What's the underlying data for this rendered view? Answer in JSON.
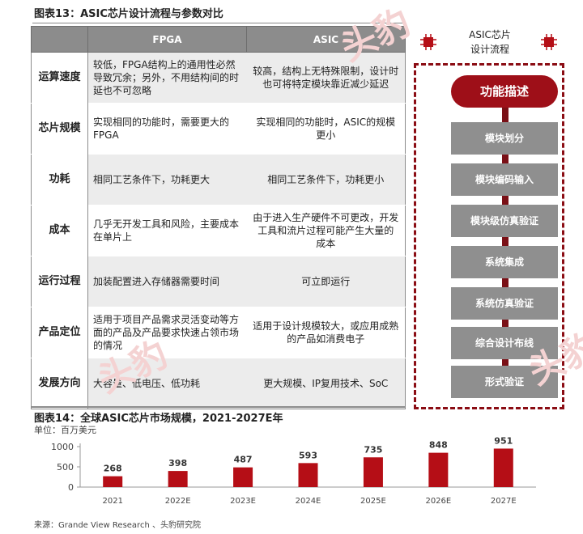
{
  "figure13": {
    "title": "图表13：ASIC芯片设计流程与参数对比",
    "columns": [
      "",
      "FPGA",
      "ASIC"
    ],
    "rows": [
      {
        "label": "运算速度",
        "fpga": "较低，FPGA结构上的通用性必然导致冗余；另外，不用结构间的时延也不可忽略",
        "asic": "较高，结构上无特殊限制，设计时也可将特定模块靠近减少延迟"
      },
      {
        "label": "芯片规模",
        "fpga": "实现相同的功能时，需要更大的FPGA",
        "asic": "实现相同的功能时，ASIC的规模更小"
      },
      {
        "label": "功耗",
        "fpga": "相同工艺条件下，功耗更大",
        "asic": "相同工艺条件下，功耗更小"
      },
      {
        "label": "成本",
        "fpga": "几乎无开发工具和风险，主要成本在单片上",
        "asic": "由于进入生产硬件不可更改，开发工具和流片过程可能产生大量的 成本"
      },
      {
        "label": "运行过程",
        "fpga": "加装配置进入存储器需要时间",
        "asic": "可立即运行"
      },
      {
        "label": "产品定位",
        "fpga": "适用于项目产品需求灵活变动等方面的产品及产品要求快速占领市场的情况",
        "asic": "适用于设计规模较大，或应用成熟的产品如消费电子"
      },
      {
        "label": "发展方向",
        "fpga": "大容量、低电压、低功耗",
        "asic": "更大规模、IP复用技术、SoC"
      }
    ]
  },
  "flow": {
    "heading_line1": "ASIC芯片",
    "heading_line2": "设计流程",
    "start": "功能描述",
    "steps": [
      "模块划分",
      "模块编码输入",
      "模块级仿真验证",
      "系统集成",
      "系统仿真验证",
      "综合设计布线",
      "形式验证"
    ],
    "accent": "#9e0f18",
    "step_color": "#8f8f8f"
  },
  "figure14": {
    "title": "图表14：全球ASIC芯片市场规模，2021-2027E年",
    "unit": "单位：百万美元",
    "source": "来源：Grande View Research 、头豹研究院"
  },
  "chart_data": {
    "type": "bar",
    "categories": [
      "2021",
      "2022E",
      "2023E",
      "2024E",
      "2025E",
      "2026E",
      "2027E"
    ],
    "values": [
      268,
      398,
      487,
      593,
      735,
      848,
      951
    ],
    "yticks": [
      0,
      500,
      1000
    ],
    "ylim": [
      0,
      1000
    ],
    "bar_color": "#b50e16",
    "grid": false,
    "legend": "none"
  },
  "watermark": "头豹"
}
